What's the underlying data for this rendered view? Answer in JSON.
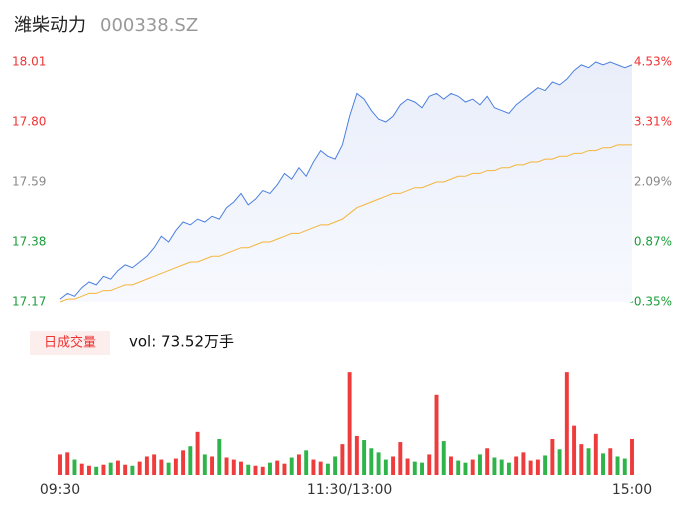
{
  "chart_data": {
    "type": "line",
    "title": "潍柴动力",
    "subtitle": "000338.SZ",
    "badge": "日成交量",
    "volume_label": "vol: 73.52万手",
    "xlim": [
      0,
      79
    ],
    "xticks": [
      {
        "value": 0,
        "label": "09:30"
      },
      {
        "value": 40,
        "label": "11:30/13:00"
      },
      {
        "value": 79,
        "label": "15:00"
      }
    ],
    "ylim": [
      17.17,
      18.01
    ],
    "yticks": [
      17.17,
      17.38,
      17.59,
      {
        "value": 17.8,
        "label": "17.80"
      },
      18.01
    ],
    "y2lim": [
      -0.35,
      4.53
    ],
    "y2ticks": [
      {
        "value": -0.35,
        "label": "-0.35%"
      },
      {
        "value": 0.87,
        "label": "0.87%"
      },
      {
        "value": 2.09,
        "label": "2.09%"
      },
      {
        "value": 3.31,
        "label": "3.31%"
      },
      {
        "value": 4.53,
        "label": "4.53%"
      }
    ],
    "series": [
      {
        "name": "price",
        "color": "#4a7fe0",
        "values": [
          17.18,
          17.2,
          17.19,
          17.22,
          17.24,
          17.23,
          17.26,
          17.25,
          17.28,
          17.3,
          17.29,
          17.31,
          17.33,
          17.36,
          17.4,
          17.38,
          17.42,
          17.45,
          17.44,
          17.46,
          17.45,
          17.47,
          17.46,
          17.5,
          17.52,
          17.55,
          17.51,
          17.53,
          17.56,
          17.55,
          17.58,
          17.62,
          17.6,
          17.64,
          17.61,
          17.66,
          17.7,
          17.68,
          17.67,
          17.72,
          17.82,
          17.9,
          17.88,
          17.84,
          17.81,
          17.8,
          17.82,
          17.86,
          17.88,
          17.87,
          17.85,
          17.89,
          17.9,
          17.88,
          17.9,
          17.89,
          17.87,
          17.88,
          17.86,
          17.89,
          17.85,
          17.84,
          17.83,
          17.86,
          17.88,
          17.9,
          17.92,
          17.91,
          17.94,
          17.93,
          17.95,
          17.98,
          18.0,
          17.99,
          18.01,
          18.0,
          18.01,
          18.0,
          17.99,
          18.0
        ]
      },
      {
        "name": "average",
        "color": "#f5b53a",
        "values": [
          17.17,
          17.18,
          17.18,
          17.19,
          17.2,
          17.2,
          17.21,
          17.21,
          17.22,
          17.23,
          17.23,
          17.24,
          17.25,
          17.26,
          17.27,
          17.28,
          17.29,
          17.3,
          17.31,
          17.31,
          17.32,
          17.33,
          17.33,
          17.34,
          17.35,
          17.36,
          17.36,
          17.37,
          17.38,
          17.38,
          17.39,
          17.4,
          17.41,
          17.41,
          17.42,
          17.43,
          17.44,
          17.44,
          17.45,
          17.46,
          17.48,
          17.5,
          17.51,
          17.52,
          17.53,
          17.54,
          17.55,
          17.55,
          17.56,
          17.57,
          17.57,
          17.58,
          17.59,
          17.59,
          17.6,
          17.61,
          17.61,
          17.62,
          17.62,
          17.63,
          17.63,
          17.64,
          17.64,
          17.65,
          17.65,
          17.66,
          17.66,
          17.67,
          17.67,
          17.68,
          17.68,
          17.69,
          17.69,
          17.7,
          17.7,
          17.71,
          17.71,
          17.72,
          17.72,
          17.72
        ]
      }
    ],
    "volume": {
      "ylim": [
        0,
        10500
      ],
      "up_color": "#ee3b3b",
      "down_color": "#2fb44a",
      "values": [
        2000,
        2200,
        1500,
        1100,
        900,
        800,
        1000,
        1200,
        1400,
        1000,
        900,
        1300,
        1800,
        2000,
        1500,
        1200,
        1600,
        2400,
        2800,
        4200,
        2000,
        1800,
        3500,
        1700,
        1500,
        1300,
        1000,
        900,
        800,
        1200,
        1400,
        1100,
        1700,
        2000,
        2400,
        1500,
        1300,
        1100,
        1800,
        3000,
        10000,
        3800,
        3400,
        2600,
        2200,
        1500,
        1800,
        3200,
        1600,
        1300,
        1200,
        2000,
        7800,
        3300,
        1800,
        1400,
        1200,
        1500,
        2000,
        2600,
        1700,
        1500,
        1200,
        1800,
        2200,
        1400,
        1500,
        1900,
        3500,
        2500,
        10000,
        4800,
        3000,
        2600,
        4000,
        2100,
        2600,
        1800,
        1600,
        3500
      ]
    }
  }
}
